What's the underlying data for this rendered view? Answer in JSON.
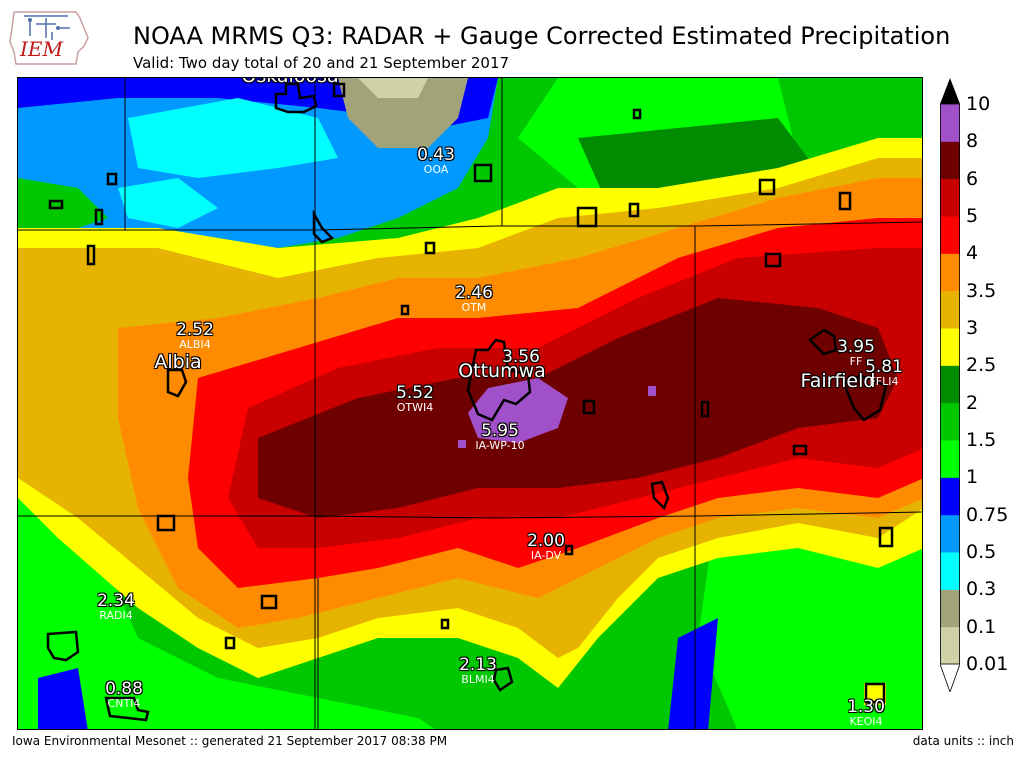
{
  "header": {
    "logo_text": "IEM",
    "title": "NOAA MRMS Q3: RADAR + Gauge Corrected Estimated Precipitation",
    "subtitle": "Valid: Two day total of 20 and 21 September 2017"
  },
  "colors": {
    "bins": [
      "#d1d1a8",
      "#a3a37a",
      "#00ffff",
      "#0099ff",
      "#0000ff",
      "#00ff00",
      "#00c800",
      "#008c00",
      "#ffff00",
      "#e6b400",
      "#ff8c00",
      "#ff0000",
      "#c80000",
      "#6e0000",
      "#a050c8",
      "#ffffff"
    ]
  },
  "colorbar": {
    "ticks": [
      "0.01",
      "0.1",
      "0.3",
      "0.5",
      "0.75",
      "1",
      "1.5",
      "2",
      "2.5",
      "3",
      "3.5",
      "4",
      "5",
      "6",
      "8",
      "10"
    ]
  },
  "stations": [
    {
      "value": "0.43",
      "id": "OOA"
    },
    {
      "value": "2.46",
      "id": "OTM"
    },
    {
      "value": "2.52",
      "id": "ALBI4"
    },
    {
      "value": "3.56",
      "id": ""
    },
    {
      "value": "5.52",
      "id": "OTWI4"
    },
    {
      "value": "5.95",
      "id": "IA-WP-10"
    },
    {
      "value": "3.95",
      "id": "FF"
    },
    {
      "value": "5.81",
      "id": "FFLI4"
    },
    {
      "value": "2.00",
      "id": "IA-DV"
    },
    {
      "value": "2.34",
      "id": "RADI4"
    },
    {
      "value": "2.13",
      "id": "BLMI4"
    },
    {
      "value": "0.88",
      "id": "CNTI4"
    },
    {
      "value": "1.30",
      "id": "KEOI4"
    }
  ],
  "cities": [
    "Oskaloosa",
    "Albia",
    "Ottumwa",
    "Fairfield"
  ],
  "footer": {
    "left": "Iowa Environmental Mesonet :: generated 21 September 2017 08:38 PM",
    "right": "data units :: inch"
  }
}
